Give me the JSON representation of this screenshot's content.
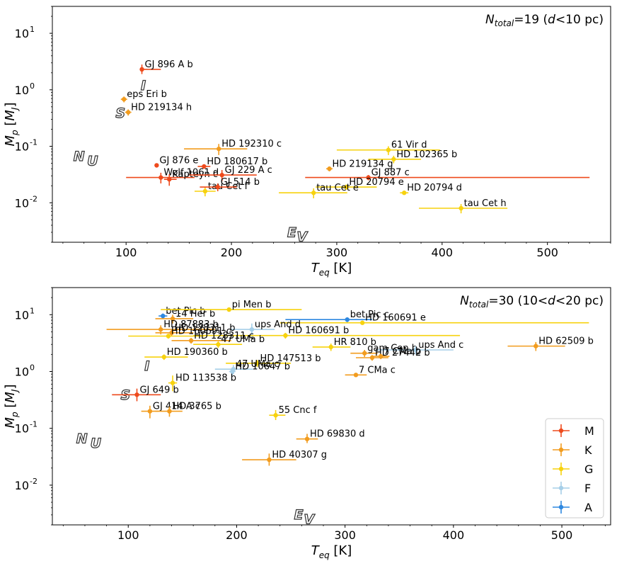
{
  "chart_data": [
    {
      "type": "scatter",
      "title": "N_total=19 (d<10 pc)",
      "annotation": {
        "prefix": "N",
        "sub": "total",
        "rest": "=19 (",
        "d": "d",
        "tail": "<10 pc)"
      },
      "xlabel": "T_eq [K]",
      "ylabel": "M_p [M_J]",
      "xlim": [
        30,
        560
      ],
      "ylim": [
        0.002,
        30
      ],
      "yscale": "log",
      "xticks": [
        100,
        200,
        300,
        400,
        500
      ],
      "yticks": [
        {
          "v": 0.01,
          "label": "10",
          "exp": "-2"
        },
        {
          "v": 0.1,
          "label": "10",
          "exp": "-1"
        },
        {
          "v": 1,
          "label": "10",
          "exp": "0"
        },
        {
          "v": 10,
          "label": "10",
          "exp": "1"
        }
      ],
      "region_letters": [
        {
          "t": "I",
          "x": 114,
          "y": 1.0
        },
        {
          "t": "S",
          "x": 90,
          "y": 0.32
        },
        {
          "t": "N",
          "x": 50,
          "y": 0.055
        },
        {
          "t": "U",
          "x": 63,
          "y": 0.046
        },
        {
          "t": "E",
          "x": 253,
          "y": 0.0025
        },
        {
          "t": "V",
          "x": 262,
          "y": 0.0021
        }
      ],
      "points": [
        {
          "name": "GJ 896 A b",
          "type": "M",
          "x": 115,
          "y": 2.3,
          "xerr": [
            116,
            133
          ],
          "yerr": [
            1.9,
            2.8
          ]
        },
        {
          "name": "eps Eri b",
          "type": "K",
          "x": 98,
          "y": 0.68,
          "xerr": [
            95,
            101
          ],
          "yerr": [
            0.6,
            0.76
          ]
        },
        {
          "name": "HD 219134 h",
          "type": "K",
          "x": 102,
          "y": 0.4,
          "xerr": [
            99,
            105
          ],
          "yerr": [
            0.35,
            0.45
          ]
        },
        {
          "name": "HD 192310 c",
          "type": "K",
          "x": 188,
          "y": 0.09,
          "xerr": [
            155,
            215
          ],
          "yerr": [
            0.07,
            0.11
          ]
        },
        {
          "name": "GJ 876 e",
          "type": "M",
          "x": 129,
          "y": 0.046,
          "xerr": [
            127,
            131
          ],
          "yerr": [
            0.042,
            0.05
          ]
        },
        {
          "name": "HD 180617 b",
          "type": "M",
          "x": 174,
          "y": 0.044,
          "xerr": [
            168,
            180
          ],
          "yerr": [
            0.04,
            0.048
          ]
        },
        {
          "name": "Wolf 1061 d",
          "type": "M",
          "x": 133,
          "y": 0.028,
          "xerr": [
            100,
            165
          ],
          "yerr": [
            0.022,
            0.034
          ]
        },
        {
          "name": "Kapteyn c",
          "type": "M",
          "x": 141,
          "y": 0.026,
          "xerr": [
            136,
            148
          ],
          "yerr": [
            0.02,
            0.032
          ]
        },
        {
          "name": "GJ 229 A c",
          "type": "M",
          "x": 191,
          "y": 0.031,
          "xerr": [
            160,
            224
          ],
          "yerr": [
            0.024,
            0.038
          ]
        },
        {
          "name": "tau Cet f",
          "type": "G",
          "x": 175,
          "y": 0.016,
          "xerr": [
            165,
            185
          ],
          "yerr": [
            0.013,
            0.019
          ]
        },
        {
          "name": "GJ 514 b",
          "type": "M",
          "x": 187,
          "y": 0.019,
          "xerr": [
            170,
            205
          ],
          "yerr": [
            0.016,
            0.022
          ]
        },
        {
          "name": "HD 219134 g",
          "type": "K",
          "x": 293,
          "y": 0.04,
          "xerr": [
            290,
            296
          ],
          "yerr": [
            0.036,
            0.044
          ]
        },
        {
          "name": "61 Vir d",
          "type": "G",
          "x": 349,
          "y": 0.086,
          "xerr": [
            300,
            398
          ],
          "yerr": [
            0.07,
            0.1
          ]
        },
        {
          "name": "HD 102365 b",
          "type": "G",
          "x": 354,
          "y": 0.059,
          "xerr": [
            330,
            380
          ],
          "yerr": [
            0.05,
            0.068
          ]
        },
        {
          "name": "GJ 887 c",
          "type": "M",
          "x": 330,
          "y": 0.028,
          "xerr": [
            270,
            540
          ],
          "yerr": [
            0.025,
            0.031
          ]
        },
        {
          "name": "HD 20794 e",
          "type": "G",
          "x": 309,
          "y": 0.019,
          "xerr": [
            280,
            338
          ],
          "yerr": [
            0.017,
            0.021
          ]
        },
        {
          "name": "tau Cet e",
          "type": "G",
          "x": 278,
          "y": 0.015,
          "xerr": [
            245,
            310
          ],
          "yerr": [
            0.012,
            0.018
          ]
        },
        {
          "name": "HD 20794 d",
          "type": "G",
          "x": 364,
          "y": 0.015,
          "xerr": [
            360,
            368
          ],
          "yerr": [
            0.014,
            0.016
          ]
        },
        {
          "name": "tau Cet h",
          "type": "G",
          "x": 418,
          "y": 0.008,
          "xerr": [
            378,
            462
          ],
          "yerr": [
            0.0065,
            0.0095
          ]
        }
      ]
    },
    {
      "type": "scatter",
      "title": "N_total=30 (10<d<20 pc)",
      "annotation": {
        "prefix": "N",
        "sub": "total",
        "rest": "=30 (10<",
        "d": "d",
        "tail": "<20 pc)"
      },
      "xlabel": "T_eq [K]",
      "ylabel": "M_p [M_J]",
      "xlim": [
        30,
        545
      ],
      "ylim": [
        0.002,
        30
      ],
      "yscale": "log",
      "xticks": [
        100,
        200,
        300,
        400,
        500
      ],
      "yticks": [
        {
          "v": 0.01,
          "label": "10",
          "exp": "-2"
        },
        {
          "v": 0.1,
          "label": "10",
          "exp": "-1"
        },
        {
          "v": 1,
          "label": "10",
          "exp": "0"
        },
        {
          "v": 10,
          "label": "10",
          "exp": "1"
        }
      ],
      "region_letters": [
        {
          "t": "I",
          "x": 115,
          "y": 1.05
        },
        {
          "t": "S",
          "x": 93,
          "y": 0.32
        },
        {
          "t": "N",
          "x": 52,
          "y": 0.055
        },
        {
          "t": "U",
          "x": 65,
          "y": 0.046
        },
        {
          "t": "E",
          "x": 253,
          "y": 0.0025
        },
        {
          "t": "V",
          "x": 262,
          "y": 0.0021
        }
      ],
      "legend": {
        "placement": "lower right",
        "entries": [
          "M",
          "K",
          "G",
          "F",
          "A"
        ]
      },
      "colors": {
        "M": "#ee4a1c",
        "K": "#f29c1e",
        "G": "#f7d20e",
        "F": "#a6cfe8",
        "A": "#2e88e0"
      },
      "points": [
        {
          "name": "bet Pic b",
          "type": "A",
          "x": 132,
          "y": 9.5,
          "xerr": [
            128,
            136
          ],
          "yerr": [
            8.5,
            10.5
          ]
        },
        {
          "name": "14 Her b",
          "type": "K",
          "x": 141,
          "y": 8.5,
          "xerr": [
            125,
            160
          ],
          "yerr": [
            7.0,
            10.0
          ]
        },
        {
          "name": "pi Men b",
          "type": "G",
          "x": 193,
          "y": 12.3,
          "xerr": [
            130,
            260
          ],
          "yerr": [
            11.5,
            13.0
          ]
        },
        {
          "name": "HD 87883 b",
          "type": "K",
          "x": 130,
          "y": 5.5,
          "xerr": [
            80,
            180
          ],
          "yerr": [
            4.5,
            6.5
          ]
        },
        {
          "name": "bet Pic c",
          "type": "A",
          "x": 302,
          "y": 8.2,
          "xerr": [
            245,
            325
          ],
          "yerr": [
            7.4,
            9.0
          ]
        },
        {
          "name": "HD 160691 e",
          "type": "G",
          "x": 316,
          "y": 7.2,
          "xerr": [
            240,
            525
          ],
          "yerr": [
            6.7,
            7.7
          ]
        },
        {
          "name": "ups And d",
          "type": "F",
          "x": 214,
          "y": 5.5,
          "xerr": [
            195,
            235
          ],
          "yerr": [
            4.0,
            7.0
          ]
        },
        {
          "name": "HD 128311 b",
          "type": "K",
          "x": 140,
          "y": 4.8,
          "xerr": [
            125,
            160
          ],
          "yerr": [
            4.2,
            5.4
          ]
        },
        {
          "name": "HD 160691 b",
          "type": "G",
          "x": 245,
          "y": 4.3,
          "xerr": [
            160,
            406
          ],
          "yerr": [
            3.8,
            4.8
          ]
        },
        {
          "name": "HD 160691 c",
          "type": "G",
          "x": 137,
          "y": 4.2,
          "xerr": [
            100,
            170
          ],
          "yerr": [
            3.8,
            4.6
          ]
        },
        {
          "name": "HD 128311 c",
          "type": "K",
          "x": 158,
          "y": 3.5,
          "xerr": [
            140,
            195
          ],
          "yerr": [
            3.1,
            3.9
          ]
        },
        {
          "name": "HR 810 b",
          "type": "G",
          "x": 287,
          "y": 2.7,
          "xerr": [
            270,
            305
          ],
          "yerr": [
            2.3,
            3.1
          ]
        },
        {
          "name": "47 UMa b",
          "type": "G",
          "x": 183,
          "y": 3.0,
          "xerr": [
            160,
            205
          ],
          "yerr": [
            2.6,
            3.4
          ]
        },
        {
          "name": "gam Cep b",
          "type": "K",
          "x": 318,
          "y": 2.1,
          "xerr": [
            305,
            330
          ],
          "yerr": [
            1.8,
            2.4
          ]
        },
        {
          "name": "ups And c",
          "type": "F",
          "x": 365,
          "y": 2.4,
          "xerr": [
            330,
            400
          ],
          "yerr": [
            2.0,
            2.8
          ]
        },
        {
          "name": "HD 62509 b",
          "type": "K",
          "x": 476,
          "y": 2.8,
          "xerr": [
            450,
            503
          ],
          "yerr": [
            2.3,
            3.3
          ]
        },
        {
          "name": "HD 190360 b",
          "type": "G",
          "x": 133,
          "y": 1.8,
          "xerr": [
            115,
            155
          ],
          "yerr": [
            1.6,
            2.0
          ]
        },
        {
          "name": "HD 147513 b",
          "type": "G",
          "x": 219,
          "y": 1.4,
          "xerr": [
            190,
            250
          ],
          "yerr": [
            1.2,
            1.6
          ]
        },
        {
          "name": "HD 27442 b",
          "type": "K",
          "x": 325,
          "y": 1.75,
          "xerr": [
            310,
            340
          ],
          "yerr": [
            1.55,
            1.95
          ]
        },
        {
          "name": "7 CMa b",
          "type": "K",
          "x": 333,
          "y": 1.85,
          "xerr": [
            325,
            341
          ],
          "yerr": [
            1.65,
            2.05
          ]
        },
        {
          "name": "47 UMa c",
          "type": "F",
          "x": 197,
          "y": 1.1,
          "xerr": [
            180,
            215
          ],
          "yerr": [
            0.9,
            1.3
          ]
        },
        {
          "name": "HD 10647 b",
          "type": "F",
          "x": 196,
          "y": 1.0,
          "xerr": [
            193,
            199
          ],
          "yerr": [
            0.85,
            1.15
          ]
        },
        {
          "name": "7 CMa c",
          "type": "K",
          "x": 310,
          "y": 0.87,
          "xerr": [
            300,
            320
          ],
          "yerr": [
            0.8,
            0.94
          ]
        },
        {
          "name": "HD 113538 b",
          "type": "G",
          "x": 141,
          "y": 0.63,
          "xerr": [
            137,
            145
          ],
          "yerr": [
            0.45,
            0.85
          ]
        },
        {
          "name": "GJ 649 b",
          "type": "M",
          "x": 108,
          "y": 0.39,
          "xerr": [
            85,
            130
          ],
          "yerr": [
            0.3,
            0.5
          ]
        },
        {
          "name": "GJ 414 A c",
          "type": "K",
          "x": 120,
          "y": 0.2,
          "xerr": [
            112,
            128
          ],
          "yerr": [
            0.15,
            0.25
          ]
        },
        {
          "name": "HD 3765 b",
          "type": "K",
          "x": 138,
          "y": 0.2,
          "xerr": [
            125,
            150
          ],
          "yerr": [
            0.16,
            0.24
          ]
        },
        {
          "name": "55 Cnc f",
          "type": "G",
          "x": 236,
          "y": 0.17,
          "xerr": [
            230,
            245
          ],
          "yerr": [
            0.14,
            0.21
          ]
        },
        {
          "name": "HD 69830 d",
          "type": "K",
          "x": 265,
          "y": 0.065,
          "xerr": [
            255,
            275
          ],
          "yerr": [
            0.055,
            0.08
          ]
        },
        {
          "name": "HD 40307 g",
          "type": "K",
          "x": 230,
          "y": 0.028,
          "xerr": [
            205,
            255
          ],
          "yerr": [
            0.022,
            0.036
          ]
        }
      ]
    }
  ]
}
